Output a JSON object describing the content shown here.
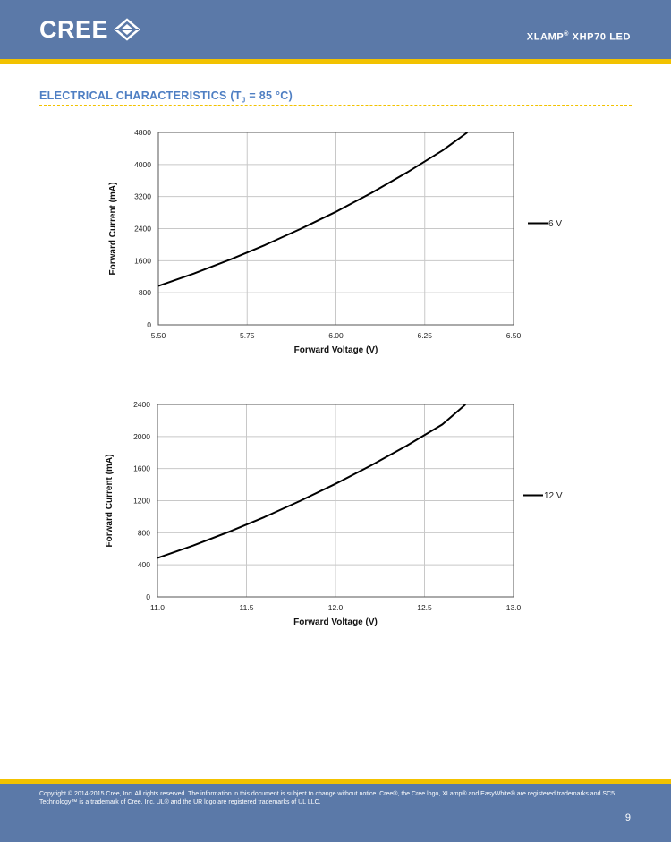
{
  "header": {
    "logo_text": "CREE",
    "product_prefix": "XLAMP",
    "product_reg": "®",
    "product_suffix": " XHP70 LED"
  },
  "section": {
    "title_prefix": "ELECTRICAL CHARACTERISTICS (T",
    "title_sub": "J",
    "title_suffix": " = 85 °C)"
  },
  "chart_data": [
    {
      "type": "line",
      "xlabel": "Forward Voltage (V)",
      "ylabel": "Forward Current (mA)",
      "xlim": [
        5.5,
        6.5
      ],
      "ylim": [
        0,
        4800
      ],
      "xticks": [
        "5.50",
        "5.75",
        "6.00",
        "6.25",
        "6.50"
      ],
      "yticks": [
        "0",
        "800",
        "1600",
        "2400",
        "3200",
        "4000",
        "4800"
      ],
      "grid": true,
      "legend_position": "right",
      "series": [
        {
          "name": "6 V",
          "color": "#000000",
          "x": [
            5.5,
            5.6,
            5.7,
            5.8,
            5.9,
            6.0,
            6.1,
            6.2,
            6.3,
            6.37
          ],
          "y": [
            970,
            1280,
            1620,
            1990,
            2390,
            2820,
            3290,
            3800,
            4350,
            4800
          ]
        }
      ]
    },
    {
      "type": "line",
      "xlabel": "Forward Voltage (V)",
      "ylabel": "Forward Current (mA)",
      "xlim": [
        11.0,
        13.0
      ],
      "ylim": [
        0,
        2400
      ],
      "xticks": [
        "11.0",
        "11.5",
        "12.0",
        "12.5",
        "13.0"
      ],
      "yticks": [
        "0",
        "400",
        "800",
        "1200",
        "1600",
        "2000",
        "2400"
      ],
      "grid": true,
      "legend_position": "right",
      "series": [
        {
          "name": "12 V",
          "color": "#000000",
          "x": [
            11.0,
            11.2,
            11.4,
            11.6,
            11.8,
            12.0,
            12.2,
            12.4,
            12.6,
            12.73
          ],
          "y": [
            485,
            640,
            810,
            995,
            1195,
            1410,
            1640,
            1885,
            2150,
            2400
          ]
        }
      ]
    }
  ],
  "footer": {
    "copyright": "Copyright © 2014-2015 Cree, Inc. All rights reserved. The information in this document is subject to change without notice. Cree®, the Cree logo, XLamp® and EasyWhite® are registered trademarks and SC5 Technology™ is a trademark of Cree, Inc. UL® and the UR logo are registered trademarks of UL LLC.",
    "page_number": "9"
  },
  "colors": {
    "brand_blue": "#5b79a8",
    "accent_yellow": "#f2c200",
    "title_blue": "#4f7fc3",
    "grid": "#c8c8c8"
  }
}
